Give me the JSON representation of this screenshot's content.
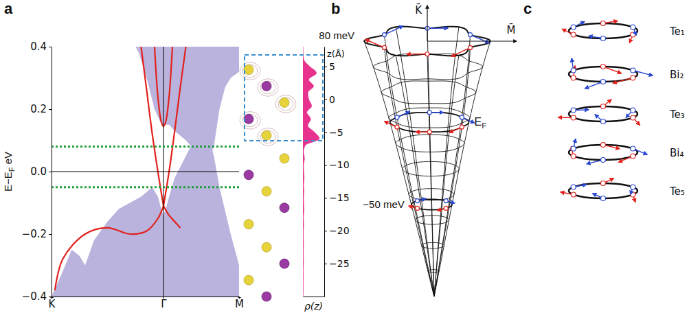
{
  "chart_data": [
    {
      "type": "line",
      "panel": "a",
      "ylabel": [
        "E−E",
        "F",
        " eV"
      ],
      "xlim": [
        -1,
        0.675
      ],
      "xticks": [
        {
          "value": -1,
          "label": "K̄"
        },
        {
          "value": 0,
          "label": "Γ̄"
        },
        {
          "value": 0.675,
          "label": "M̄"
        }
      ],
      "ylim": [
        -0.4,
        0.4
      ],
      "yticks": [
        {
          "value": -0.4,
          "label": "−0.4"
        },
        {
          "value": -0.2,
          "label": "−0.2"
        },
        {
          "value": 0,
          "label": "0.0"
        },
        0.2,
        0.4
      ],
      "series": [
        {
          "type": "area",
          "color": "#b9b3dd",
          "x": [
            -0.25,
            -0.22,
            -0.15,
            -0.08,
            -0.03,
            0,
            0.05,
            0.1,
            0.2,
            0.3,
            0.35,
            0.4,
            0.45,
            0.5,
            0.55,
            0.6,
            0.675
          ],
          "values": [
            0.4,
            0.4,
            0.4,
            0.4,
            0.4,
            0.4,
            0.4,
            0.4,
            0.4,
            0.4,
            0.4,
            0.4,
            0.4,
            0.4,
            0.4,
            0.4,
            0.4
          ],
          "base": [
            0.4,
            0.38,
            0.3,
            0.2,
            0.16,
            0.15,
            0.15,
            0.13,
            0.1,
            0.06,
            0.05,
            0.04,
            0.08,
            0.2,
            0.27,
            0.3,
            0.32
          ]
        },
        {
          "type": "area",
          "color": "#b9b3dd",
          "x": [
            -1,
            -0.9,
            -0.82,
            -0.75,
            -0.7,
            -0.62,
            -0.5,
            -0.4,
            -0.3,
            -0.2,
            -0.1,
            -0.05,
            -0.02,
            0,
            0.02,
            0.05,
            0.1,
            0.2,
            0.3,
            0.35,
            0.4,
            0.45,
            0.5,
            0.6,
            0.675
          ],
          "values": [
            -0.4,
            -0.32,
            -0.25,
            -0.27,
            -0.3,
            -0.22,
            -0.16,
            -0.12,
            -0.1,
            -0.08,
            -0.05,
            -0.08,
            -0.12,
            -0.14,
            -0.12,
            -0.08,
            -0.02,
            0.05,
            0.12,
            0.14,
            0.12,
            0.05,
            -0.05,
            -0.2,
            -0.3
          ],
          "base": [
            -0.4,
            -0.4,
            -0.4,
            -0.4,
            -0.4,
            -0.4,
            -0.4,
            -0.4,
            -0.4,
            -0.4,
            -0.4,
            -0.4,
            -0.4,
            -0.4,
            -0.4,
            -0.4,
            -0.4,
            -0.4,
            -0.4,
            -0.4,
            -0.4,
            -0.4,
            -0.4,
            -0.4,
            -0.4
          ]
        },
        {
          "type": "line",
          "color": "#e3211c",
          "x": [
            0,
            -0.05,
            -0.1,
            -0.15,
            -0.2
          ],
          "values": [
            -0.11,
            0.0,
            0.12,
            0.26,
            0.4
          ]
        },
        {
          "type": "line",
          "color": "#e3211c",
          "x": [
            0,
            0.05,
            0.1,
            0.15,
            0.2
          ],
          "values": [
            -0.11,
            0.0,
            0.13,
            0.27,
            0.4
          ]
        },
        {
          "type": "line",
          "color": "#e3211c",
          "x": [
            -0.08,
            -0.05,
            -0.02,
            0,
            0.02,
            0.05,
            0.08
          ],
          "values": [
            0.4,
            0.24,
            0.16,
            0.145,
            0.16,
            0.24,
            0.4
          ]
        },
        {
          "type": "line",
          "color": "#e3211c",
          "x": [
            0,
            -0.05,
            -0.15,
            -0.3,
            -0.5,
            -0.7,
            -0.9,
            -0.97
          ],
          "values": [
            -0.11,
            -0.15,
            -0.19,
            -0.2,
            -0.18,
            -0.2,
            -0.28,
            -0.38
          ]
        },
        {
          "type": "line",
          "color": "#e3211c",
          "x": [
            0,
            0.05,
            0.1,
            0.15
          ],
          "values": [
            -0.11,
            -0.14,
            -0.16,
            -0.18
          ]
        }
      ],
      "ref_lines": [
        {
          "axis": "x",
          "value": 0,
          "color": "#000000"
        },
        {
          "axis": "y",
          "value": 0,
          "color": "#000000"
        },
        {
          "axis": "y",
          "value": 0.08,
          "color": "#1f9e3a",
          "line_style": "dotted"
        },
        {
          "axis": "y",
          "value": -0.05,
          "color": "#1f9e3a",
          "line_style": "dotted"
        }
      ]
    },
    {
      "type": "area",
      "xlabel": "ρ(z)",
      "ylabel": "z(Å)",
      "tick_labels": "y",
      "color": "#e8338e",
      "xlim": [
        0,
        1.1
      ],
      "ylim": [
        -30,
        8
      ],
      "yticks": [
        5,
        0,
        {
          "value": -5,
          "label": "−5"
        },
        {
          "value": -10,
          "label": "−10"
        },
        {
          "value": -15,
          "label": "−15"
        },
        {
          "value": -20,
          "label": "−20"
        },
        {
          "value": -25,
          "label": "−25"
        }
      ],
      "y": [
        8,
        7,
        6,
        5,
        4,
        3,
        2,
        1,
        0,
        -1,
        -2,
        -3,
        -4,
        -5,
        -6,
        -7,
        -8,
        -9,
        -10,
        -11,
        -12,
        -13,
        -14,
        -15,
        -16,
        -17,
        -18,
        -19,
        -20,
        -21,
        -22,
        -23,
        -24,
        -25,
        -26,
        -27,
        -28,
        -29,
        -30
      ],
      "values": [
        0,
        0,
        0.05,
        0.35,
        0.7,
        0.3,
        0.55,
        0.25,
        0.3,
        0.45,
        0.2,
        0.4,
        0.25,
        0.6,
        0.85,
        0.12,
        0.03,
        0.08,
        0.03,
        0.04,
        0.06,
        0.03,
        0.05,
        0.03,
        0.04,
        0.05,
        0.02,
        0.04,
        0.02,
        0.02,
        0.03,
        0.02,
        0.02,
        0.03,
        0.01,
        0.02,
        0.01,
        0.01,
        0
      ]
    }
  ],
  "panel_b": {
    "letter": "b",
    "axis_labels": [
      "K̄",
      "M̄"
    ],
    "energy_labels": [
      "80 meV",
      "−50 meV"
    ],
    "fermi_label": [
      "E",
      "F"
    ]
  },
  "panel_c": {
    "letter": "c",
    "layers": [
      "Te₁",
      "Bi₂",
      "Te₃",
      "Bi₄",
      "Te₅"
    ]
  }
}
